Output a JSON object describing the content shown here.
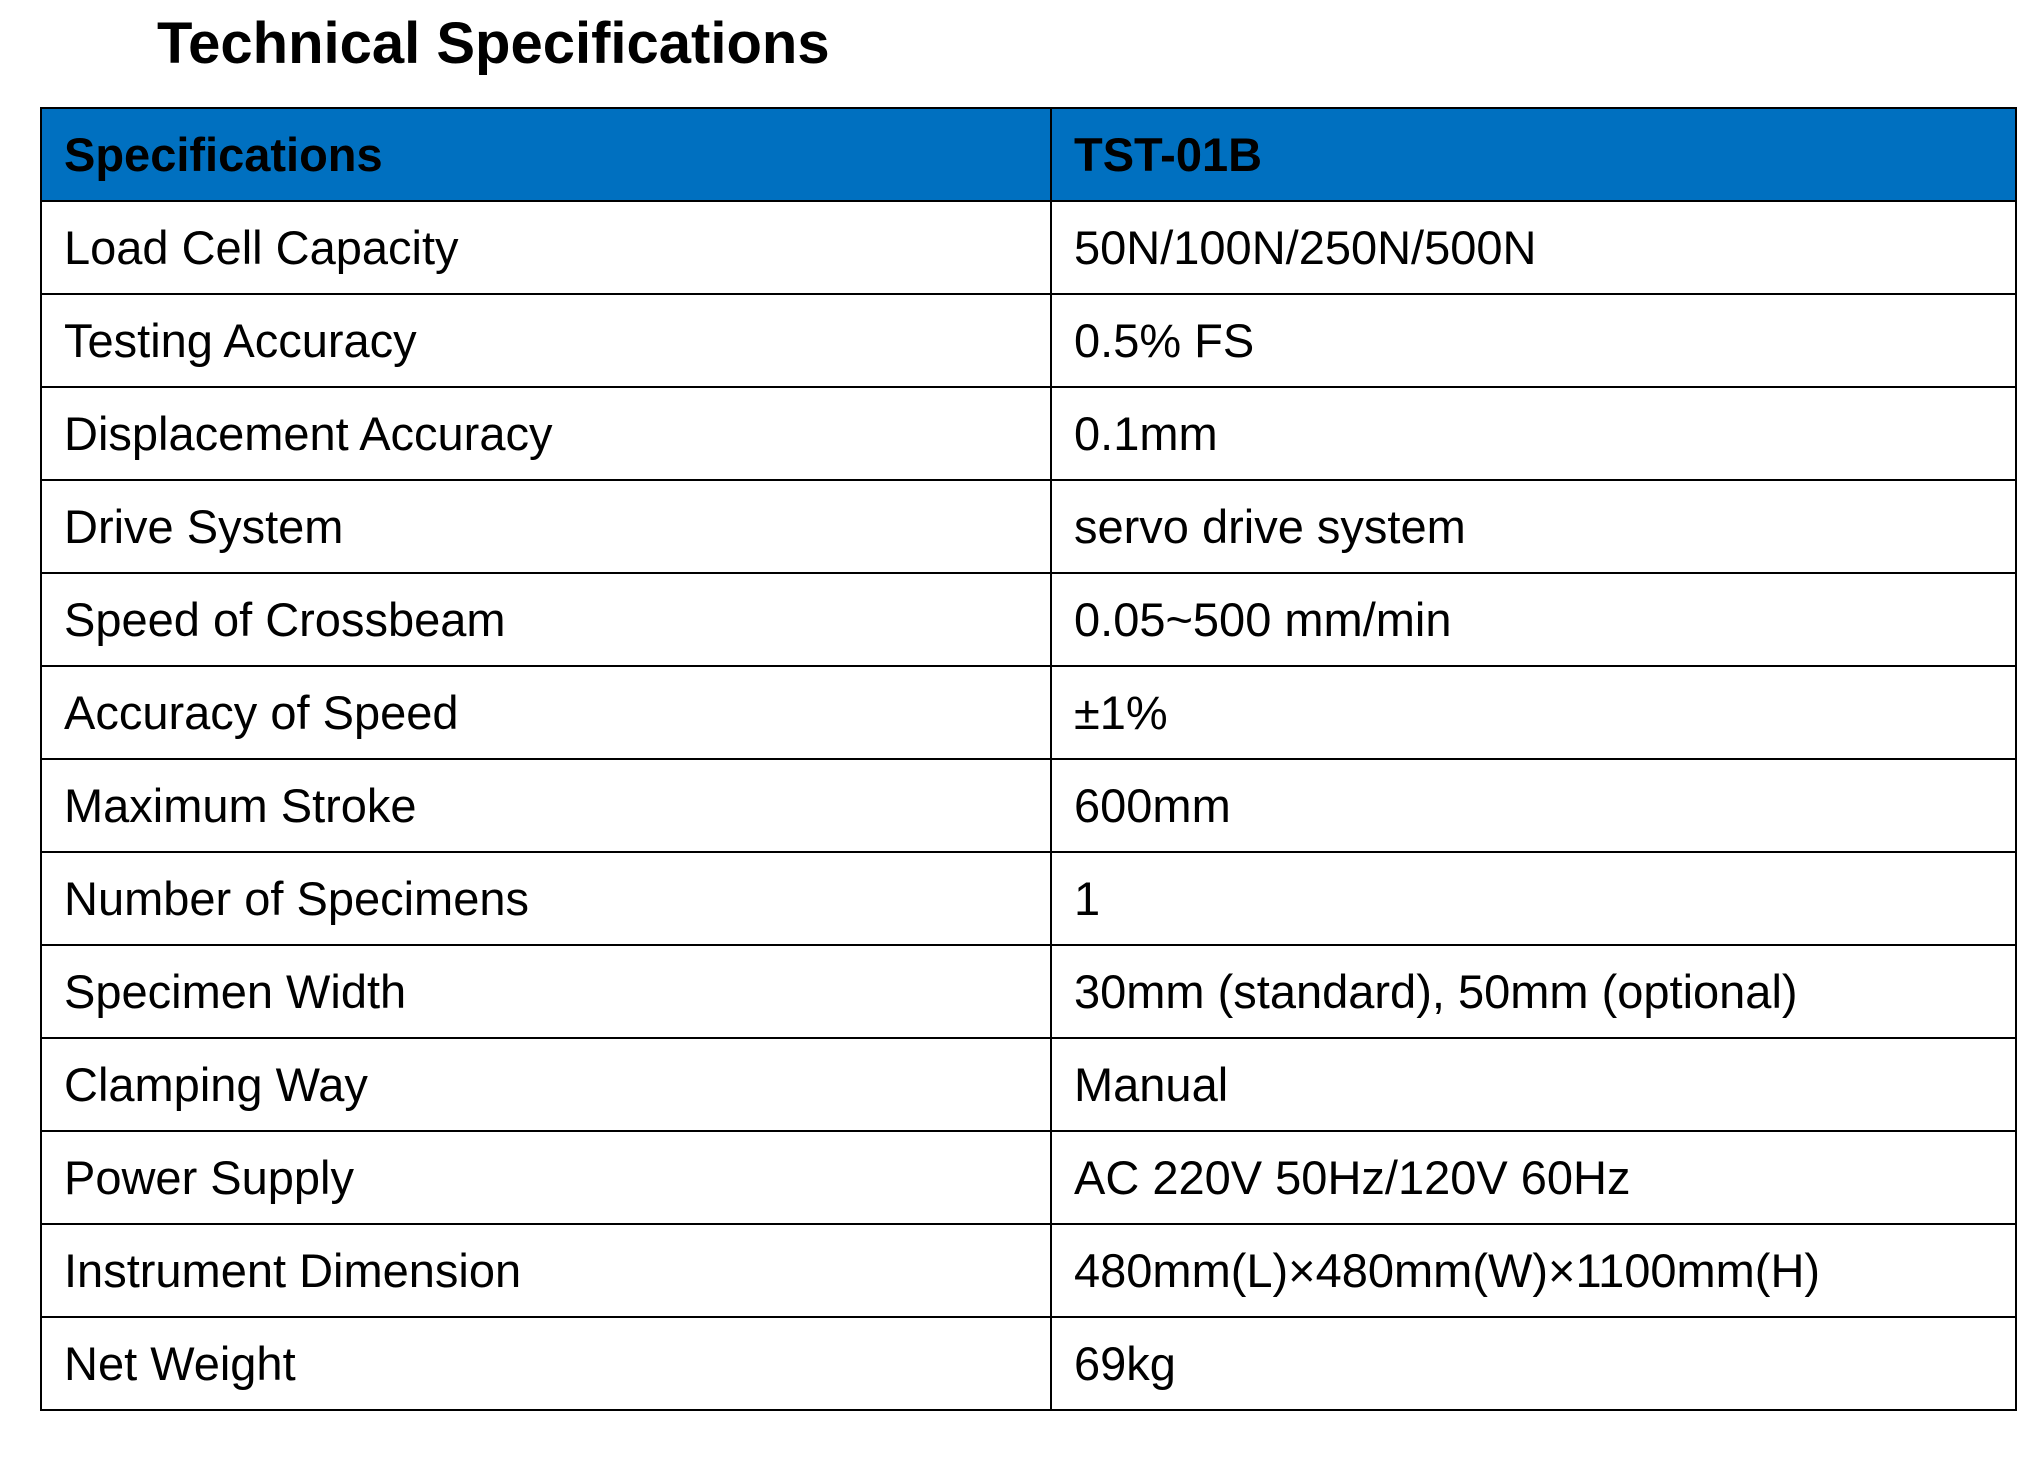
{
  "title": "Technical Specifications",
  "table": {
    "header_color": "#0070c0",
    "columns": [
      "Specifications",
      "TST-01B"
    ],
    "rows": [
      {
        "spec": "Load Cell Capacity",
        "value": "50N/100N/250N/500N"
      },
      {
        "spec": "Testing Accuracy",
        "value": "0.5% FS"
      },
      {
        "spec": "Displacement Accuracy",
        "value": "0.1mm"
      },
      {
        "spec": "Drive System",
        "value": "servo drive system"
      },
      {
        "spec": "Speed of Crossbeam",
        "value": "0.05~500 mm/min"
      },
      {
        "spec": "Accuracy of Speed",
        "value": "±1%"
      },
      {
        "spec": "Maximum Stroke",
        "value": "600mm"
      },
      {
        "spec": "Number of Specimens",
        "value": "1"
      },
      {
        "spec": "Specimen Width",
        "value": "30mm (standard), 50mm (optional)"
      },
      {
        "spec": "Clamping Way",
        "value": "Manual"
      },
      {
        "spec": "Power Supply",
        "value": "AC 220V 50Hz/120V 60Hz"
      },
      {
        "spec": "Instrument Dimension",
        "value": "480mm(L)×480mm(W)×1100mm(H)"
      },
      {
        "spec": "Net Weight",
        "value": "69kg"
      }
    ]
  }
}
